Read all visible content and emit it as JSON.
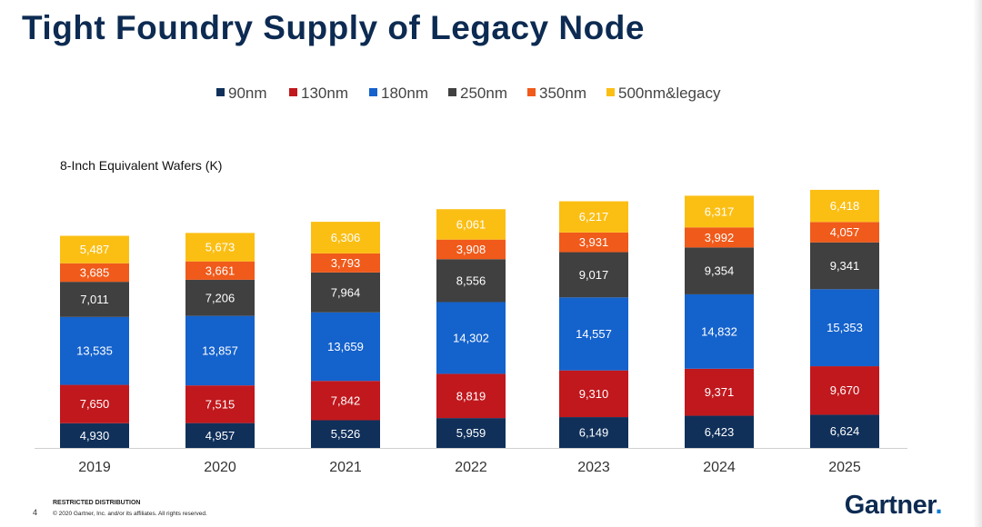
{
  "slide": {
    "title": "Tight Foundry Supply of Legacy Node",
    "page_number": "4",
    "footer_restricted": "RESTRICTED DISTRIBUTION",
    "footer_copyright": "© 2020 Gartner, Inc. and/or its affiliates. All rights reserved.",
    "logo_text": "Gartner",
    "logo_dot": "."
  },
  "chart_data": {
    "type": "bar",
    "stacked": true,
    "title": "",
    "ylabel": "8-Inch Equivalent Wafers (K)",
    "xlabel": "",
    "categories": [
      "2019",
      "2020",
      "2021",
      "2022",
      "2023",
      "2024",
      "2025"
    ],
    "series": [
      {
        "name": "90nm",
        "color": "#10305a",
        "values": [
          4930,
          4957,
          5526,
          5959,
          6149,
          6423,
          6624
        ]
      },
      {
        "name": "130nm",
        "color": "#c0181d",
        "values": [
          7650,
          7515,
          7842,
          8819,
          9310,
          9371,
          9670
        ]
      },
      {
        "name": "180nm",
        "color": "#1462cc",
        "values": [
          13535,
          13857,
          13659,
          14302,
          14557,
          14832,
          15353
        ]
      },
      {
        "name": "250nm",
        "color": "#404040",
        "values": [
          7011,
          7206,
          7964,
          8556,
          9017,
          9354,
          9341
        ]
      },
      {
        "name": "350nm",
        "color": "#f05a1a",
        "values": [
          3685,
          3661,
          3793,
          3908,
          3931,
          3992,
          4057
        ]
      },
      {
        "name": "500nm&legacy",
        "color": "#fbbf14",
        "values": [
          5487,
          5673,
          6306,
          6061,
          6217,
          6317,
          6418
        ]
      }
    ],
    "ylim": [
      0,
      55000
    ],
    "grid": false,
    "legend_position": "top"
  }
}
